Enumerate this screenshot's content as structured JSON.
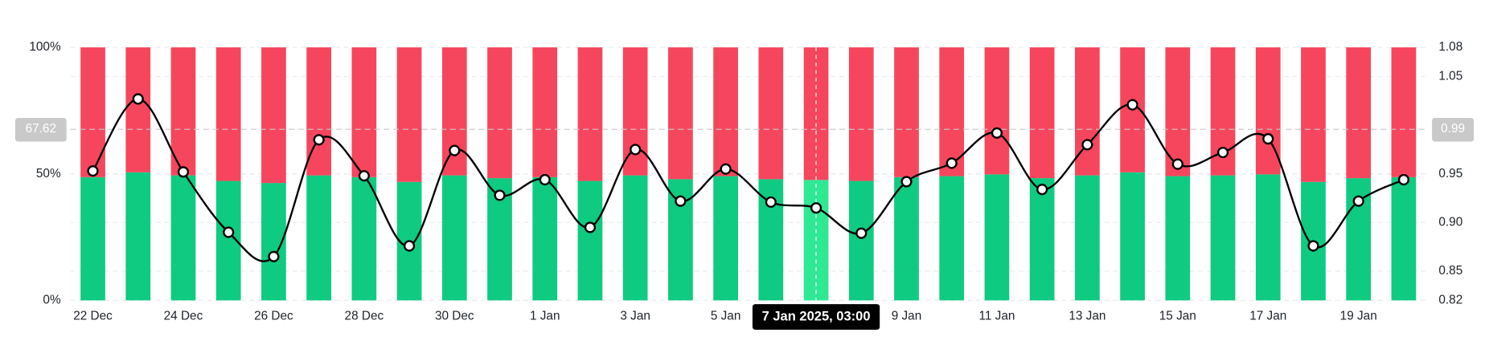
{
  "chart_data": {
    "type": "bar",
    "stacked": true,
    "categories": [
      "22 Dec",
      null,
      "24 Dec",
      null,
      "26 Dec",
      null,
      "28 Dec",
      null,
      "30 Dec",
      null,
      "1 Jan",
      null,
      "3 Jan",
      null,
      "5 Jan",
      null,
      null,
      null,
      "9 Jan",
      null,
      "11 Jan",
      null,
      "13 Jan",
      null,
      "15 Jan",
      null,
      "17 Jan",
      null,
      "19 Jan",
      null
    ],
    "series": [
      {
        "color": "#0ecb81",
        "highlight_color": "#2ee894",
        "values": [
          48.7,
          50.6,
          49.4,
          47.2,
          46.4,
          49.4,
          48.7,
          46.8,
          49.4,
          48.3,
          48.7,
          47.2,
          49.4,
          47.9,
          49.1,
          47.9,
          47.6,
          47.2,
          48.7,
          49.1,
          49.8,
          48.3,
          49.4,
          50.6,
          49.1,
          49.4,
          49.8,
          46.8,
          48.3,
          48.7
        ]
      },
      {
        "color": "#f6465d",
        "highlight_color": "#f6465d",
        "values": [
          51.3,
          49.4,
          50.6,
          52.8,
          53.6,
          50.6,
          51.3,
          53.2,
          50.6,
          51.7,
          51.3,
          52.8,
          50.6,
          52.1,
          50.9,
          52.1,
          52.4,
          52.8,
          51.3,
          50.9,
          50.2,
          51.7,
          50.6,
          49.4,
          50.9,
          50.6,
          50.2,
          53.2,
          51.7,
          51.3
        ]
      },
      {
        "type": "line",
        "axis": "y2",
        "color": "#000000",
        "values": [
          0.953,
          1.027,
          0.952,
          0.89,
          0.865,
          0.985,
          0.948,
          0.876,
          0.974,
          0.928,
          0.944,
          0.895,
          0.975,
          0.922,
          0.955,
          0.921,
          0.915,
          0.889,
          0.942,
          0.961,
          0.992,
          0.934,
          0.98,
          1.021,
          0.96,
          0.972,
          0.986,
          0.876,
          0.922,
          0.944
        ]
      }
    ],
    "ylim": [
      0,
      100
    ],
    "yticks": [
      {
        "value": 0,
        "label": "0%"
      },
      {
        "value": 50,
        "label": "50%"
      },
      {
        "value": 100,
        "label": "100%"
      }
    ],
    "y2lim": [
      0.82,
      1.08
    ],
    "y2ticks": [
      0.82,
      0.85,
      {
        "value": 0.9,
        "label": "0.90"
      },
      0.95,
      1.05,
      1.08
    ],
    "grid": true,
    "highlight_index": 16,
    "crosshair": {
      "x_label": "7 Jan 2025, 03:00",
      "y": 67.62,
      "y2": 0.99
    }
  }
}
